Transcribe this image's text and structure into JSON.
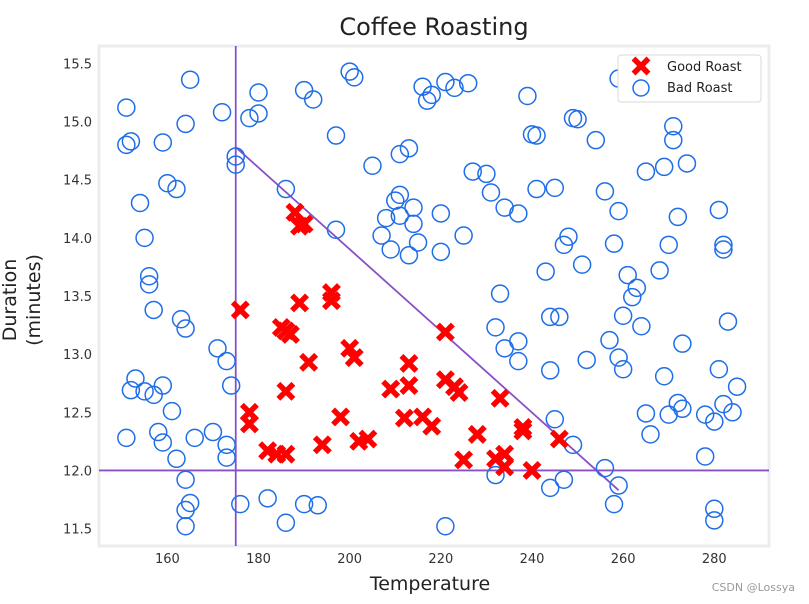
{
  "chart_data": {
    "type": "scatter",
    "title": "Coffee Roasting",
    "xlabel": "Temperature",
    "ylabel": "Duration\n(minutes)",
    "xlim": [
      145,
      292
    ],
    "ylim": [
      11.35,
      15.65
    ],
    "xticks": [
      "160",
      "180",
      "200",
      "220",
      "240",
      "260",
      "280"
    ],
    "yticks": [
      "11.5",
      "12.0",
      "12.5",
      "13.0",
      "13.5",
      "14.0",
      "14.5",
      "15.0",
      "15.5"
    ],
    "xtick_values": [
      160,
      180,
      200,
      220,
      240,
      260,
      280
    ],
    "ytick_values": [
      11.5,
      12.0,
      12.5,
      13.0,
      13.5,
      14.0,
      14.5,
      15.0,
      15.5
    ],
    "grid": false,
    "legend_position": "top-right",
    "colors": {
      "good": "#ff0000",
      "bad": "#1f6ee8",
      "lines": "#8a4fc6",
      "frame": "#ececec"
    },
    "series": [
      {
        "name": "Good Roast",
        "marker": "x",
        "points": [
          [
            176,
            13.38
          ],
          [
            178,
            12.5
          ],
          [
            178,
            12.4
          ],
          [
            182,
            12.17
          ],
          [
            184,
            12.14
          ],
          [
            186,
            12.14
          ],
          [
            185,
            13.23
          ],
          [
            186,
            13.2
          ],
          [
            187,
            13.17
          ],
          [
            186,
            12.68
          ],
          [
            189,
            13.44
          ],
          [
            188,
            14.22
          ],
          [
            189,
            14.1
          ],
          [
            190,
            14.12
          ],
          [
            191,
            12.93
          ],
          [
            194,
            12.22
          ],
          [
            196,
            13.53
          ],
          [
            196,
            13.46
          ],
          [
            198,
            12.46
          ],
          [
            200,
            13.05
          ],
          [
            201,
            12.97
          ],
          [
            202,
            12.25
          ],
          [
            204,
            12.27
          ],
          [
            209,
            12.7
          ],
          [
            212,
            12.45
          ],
          [
            213,
            12.92
          ],
          [
            213,
            12.73
          ],
          [
            216,
            12.46
          ],
          [
            218,
            12.38
          ],
          [
            221,
            13.19
          ],
          [
            221,
            12.78
          ],
          [
            223,
            12.72
          ],
          [
            224,
            12.67
          ],
          [
            225,
            12.09
          ],
          [
            228,
            12.31
          ],
          [
            232,
            12.1
          ],
          [
            233,
            12.62
          ],
          [
            234,
            12.14
          ],
          [
            234,
            12.03
          ],
          [
            238,
            12.37
          ],
          [
            238,
            12.34
          ],
          [
            240,
            12.0
          ],
          [
            246,
            12.27
          ]
        ]
      },
      {
        "name": "Bad Roast",
        "marker": "o",
        "points": [
          [
            151,
            15.12
          ],
          [
            151,
            14.8
          ],
          [
            152,
            14.83
          ],
          [
            154,
            14.3
          ],
          [
            155,
            14.0
          ],
          [
            156,
            13.67
          ],
          [
            156,
            13.6
          ],
          [
            157,
            13.38
          ],
          [
            159,
            14.82
          ],
          [
            160,
            14.47
          ],
          [
            162,
            14.42
          ],
          [
            164,
            14.98
          ],
          [
            165,
            15.36
          ],
          [
            163,
            13.3
          ],
          [
            164,
            13.22
          ],
          [
            151,
            12.28
          ],
          [
            152,
            12.69
          ],
          [
            153,
            12.79
          ],
          [
            155,
            12.68
          ],
          [
            157,
            12.65
          ],
          [
            158,
            12.33
          ],
          [
            159,
            12.24
          ],
          [
            159,
            12.73
          ],
          [
            161,
            12.51
          ],
          [
            162,
            12.1
          ],
          [
            164,
            11.92
          ],
          [
            164,
            11.66
          ],
          [
            165,
            11.72
          ],
          [
            164,
            11.52
          ],
          [
            166,
            12.28
          ],
          [
            170,
            12.33
          ],
          [
            171,
            13.05
          ],
          [
            173,
            12.94
          ],
          [
            173,
            12.22
          ],
          [
            173,
            12.11
          ],
          [
            174,
            12.73
          ],
          [
            175,
            14.7
          ],
          [
            175,
            14.63
          ],
          [
            172,
            15.08
          ],
          [
            176,
            11.71
          ],
          [
            178,
            15.03
          ],
          [
            180,
            15.07
          ],
          [
            180,
            15.25
          ],
          [
            182,
            11.76
          ],
          [
            186,
            11.55
          ],
          [
            186,
            14.42
          ],
          [
            190,
            15.27
          ],
          [
            192,
            15.19
          ],
          [
            190,
            11.71
          ],
          [
            193,
            11.7
          ],
          [
            197,
            14.88
          ],
          [
            197,
            14.07
          ],
          [
            200,
            15.43
          ],
          [
            201,
            15.38
          ],
          [
            205,
            14.62
          ],
          [
            207,
            14.02
          ],
          [
            208,
            14.17
          ],
          [
            209,
            13.9
          ],
          [
            210,
            14.32
          ],
          [
            211,
            14.72
          ],
          [
            211,
            14.37
          ],
          [
            211,
            14.19
          ],
          [
            213,
            14.77
          ],
          [
            213,
            13.85
          ],
          [
            214,
            14.26
          ],
          [
            214,
            14.12
          ],
          [
            215,
            13.96
          ],
          [
            216,
            15.3
          ],
          [
            217,
            15.18
          ],
          [
            218,
            15.23
          ],
          [
            220,
            14.21
          ],
          [
            220,
            13.88
          ],
          [
            221,
            11.52
          ],
          [
            223,
            15.29
          ],
          [
            225,
            14.02
          ],
          [
            226,
            15.33
          ],
          [
            227,
            14.57
          ],
          [
            230,
            14.55
          ],
          [
            231,
            14.39
          ],
          [
            232,
            13.23
          ],
          [
            233,
            13.52
          ],
          [
            234,
            14.26
          ],
          [
            234,
            13.05
          ],
          [
            237,
            14.21
          ],
          [
            237,
            13.11
          ],
          [
            237,
            12.94
          ],
          [
            239,
            15.22
          ],
          [
            240,
            14.89
          ],
          [
            241,
            14.42
          ],
          [
            241,
            14.88
          ],
          [
            243,
            13.71
          ],
          [
            244,
            13.32
          ],
          [
            246,
            13.32
          ],
          [
            245,
            14.43
          ],
          [
            247,
            13.94
          ],
          [
            248,
            14.01
          ],
          [
            249,
            15.03
          ],
          [
            250,
            15.02
          ],
          [
            251,
            13.77
          ],
          [
            252,
            12.95
          ],
          [
            254,
            14.84
          ],
          [
            256,
            14.4
          ],
          [
            257,
            13.12
          ],
          [
            258,
            13.95
          ],
          [
            259,
            14.23
          ],
          [
            259,
            12.97
          ],
          [
            260,
            12.87
          ],
          [
            260,
            13.33
          ],
          [
            261,
            13.68
          ],
          [
            262,
            13.49
          ],
          [
            263,
            13.57
          ],
          [
            264,
            13.24
          ],
          [
            265,
            14.57
          ],
          [
            265,
            12.49
          ],
          [
            266,
            12.31
          ],
          [
            268,
            13.72
          ],
          [
            269,
            12.81
          ],
          [
            269,
            14.61
          ],
          [
            270,
            13.94
          ],
          [
            270,
            12.48
          ],
          [
            271,
            14.84
          ],
          [
            271,
            14.96
          ],
          [
            272,
            14.18
          ],
          [
            272,
            12.58
          ],
          [
            273,
            12.53
          ],
          [
            273,
            13.09
          ],
          [
            274,
            14.64
          ],
          [
            278,
            12.48
          ],
          [
            278,
            12.12
          ],
          [
            280,
            12.42
          ],
          [
            280,
            11.67
          ],
          [
            280,
            11.57
          ],
          [
            281,
            14.24
          ],
          [
            281,
            12.87
          ],
          [
            282,
            12.57
          ],
          [
            282,
            13.94
          ],
          [
            282,
            13.9
          ],
          [
            283,
            13.28
          ],
          [
            284,
            12.5
          ],
          [
            285,
            12.72
          ],
          [
            259,
            11.87
          ],
          [
            258,
            11.71
          ],
          [
            256,
            12.02
          ],
          [
            249,
            12.22
          ],
          [
            247,
            11.92
          ],
          [
            245,
            12.44
          ],
          [
            244,
            11.85
          ],
          [
            244,
            12.86
          ],
          [
            232,
            11.96
          ],
          [
            221,
            15.34
          ],
          [
            266,
            15.26
          ],
          [
            264,
            15.3
          ],
          [
            269,
            15.35
          ],
          [
            268,
            15.31
          ],
          [
            259,
            15.37
          ]
        ]
      }
    ],
    "lines": [
      {
        "x": [
          145,
          292
        ],
        "y": [
          12.0,
          12.0
        ]
      },
      {
        "x": [
          175,
          175
        ],
        "y": [
          11.35,
          15.65
        ]
      },
      {
        "x": [
          175,
          259
        ],
        "y": [
          14.78,
          11.83
        ]
      }
    ]
  },
  "watermark": "CSDN @Lossya"
}
